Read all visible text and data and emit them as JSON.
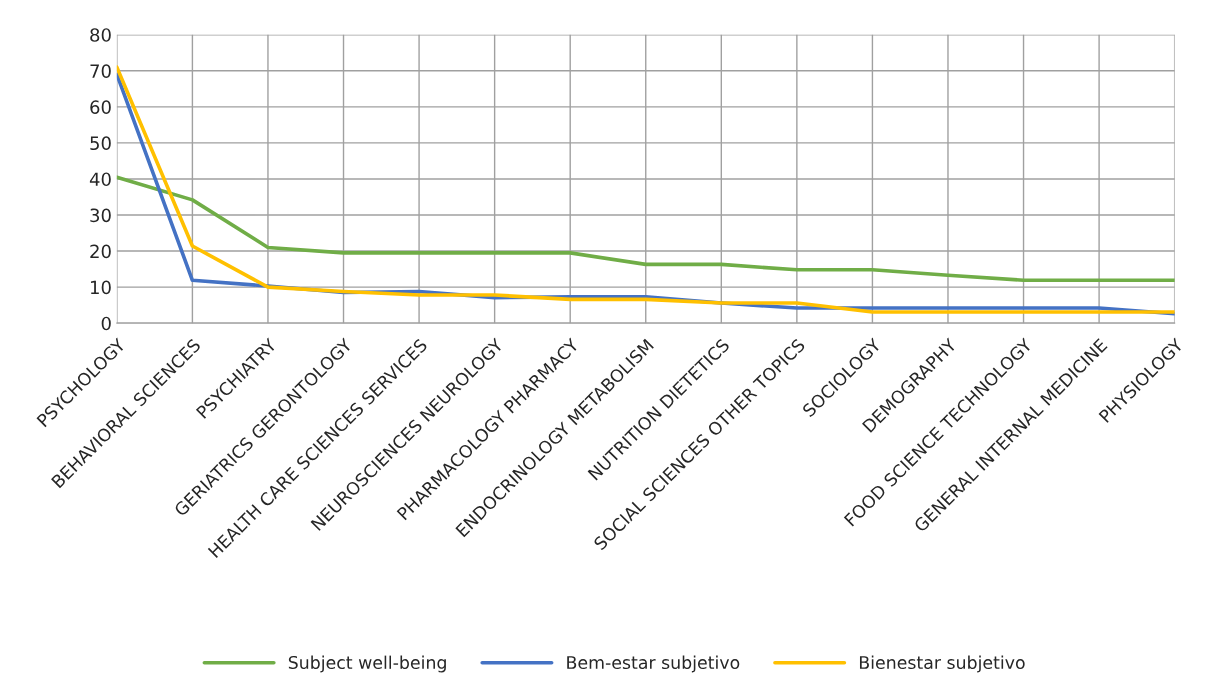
{
  "chart_data": {
    "type": "line",
    "categories": [
      "PSYCHOLOGY",
      "BEHAVIORAL SCIENCES",
      "PSYCHIATRY",
      "GERIATRICS GERONTOLOGY",
      "HEALTH CARE SCIENCES SERVICES",
      "NEUROSCIENCES NEUROLOGY",
      "PHARMACOLOGY PHARMACY",
      "ENDOCRINOLOGY METABOLISM",
      "NUTRITION DIETETICS",
      "SOCIAL SCIENCES OTHER TOPICS",
      "SOCIOLOGY",
      "DEMOGRAPHY",
      "FOOD SCIENCE TECHNOLOGY",
      "GENERAL INTERNAL MEDICINE",
      "PHYSIOLOGY"
    ],
    "series": [
      {
        "name": "Subject well-being",
        "color": "#70ad47",
        "values": [
          40.5,
          34.2,
          21,
          19.5,
          19.5,
          19.5,
          19.5,
          16.3,
          16.3,
          14.8,
          14.8,
          13.3,
          11.9,
          11.9,
          11.9
        ]
      },
      {
        "name": "Bem-estar subjetivo",
        "color": "#4472c4",
        "values": [
          69,
          11.9,
          10.3,
          8.5,
          8.8,
          7.1,
          7.3,
          7.3,
          5.6,
          4.2,
          4.2,
          4.2,
          4.2,
          4.2,
          2.6
        ]
      },
      {
        "name": "Bienestar subjetivo",
        "color": "#ffc000",
        "values": [
          71,
          21.4,
          10,
          8.8,
          7.8,
          7.8,
          6.6,
          6.6,
          5.6,
          5.6,
          3.1,
          3.1,
          3.1,
          3.1,
          3.1
        ]
      }
    ],
    "ylim": [
      0,
      80
    ],
    "yticks": [
      0,
      10,
      20,
      30,
      40,
      50,
      60,
      70,
      80
    ],
    "grid": true,
    "legend": "bottom",
    "marker": "none",
    "line_style": "solid"
  }
}
